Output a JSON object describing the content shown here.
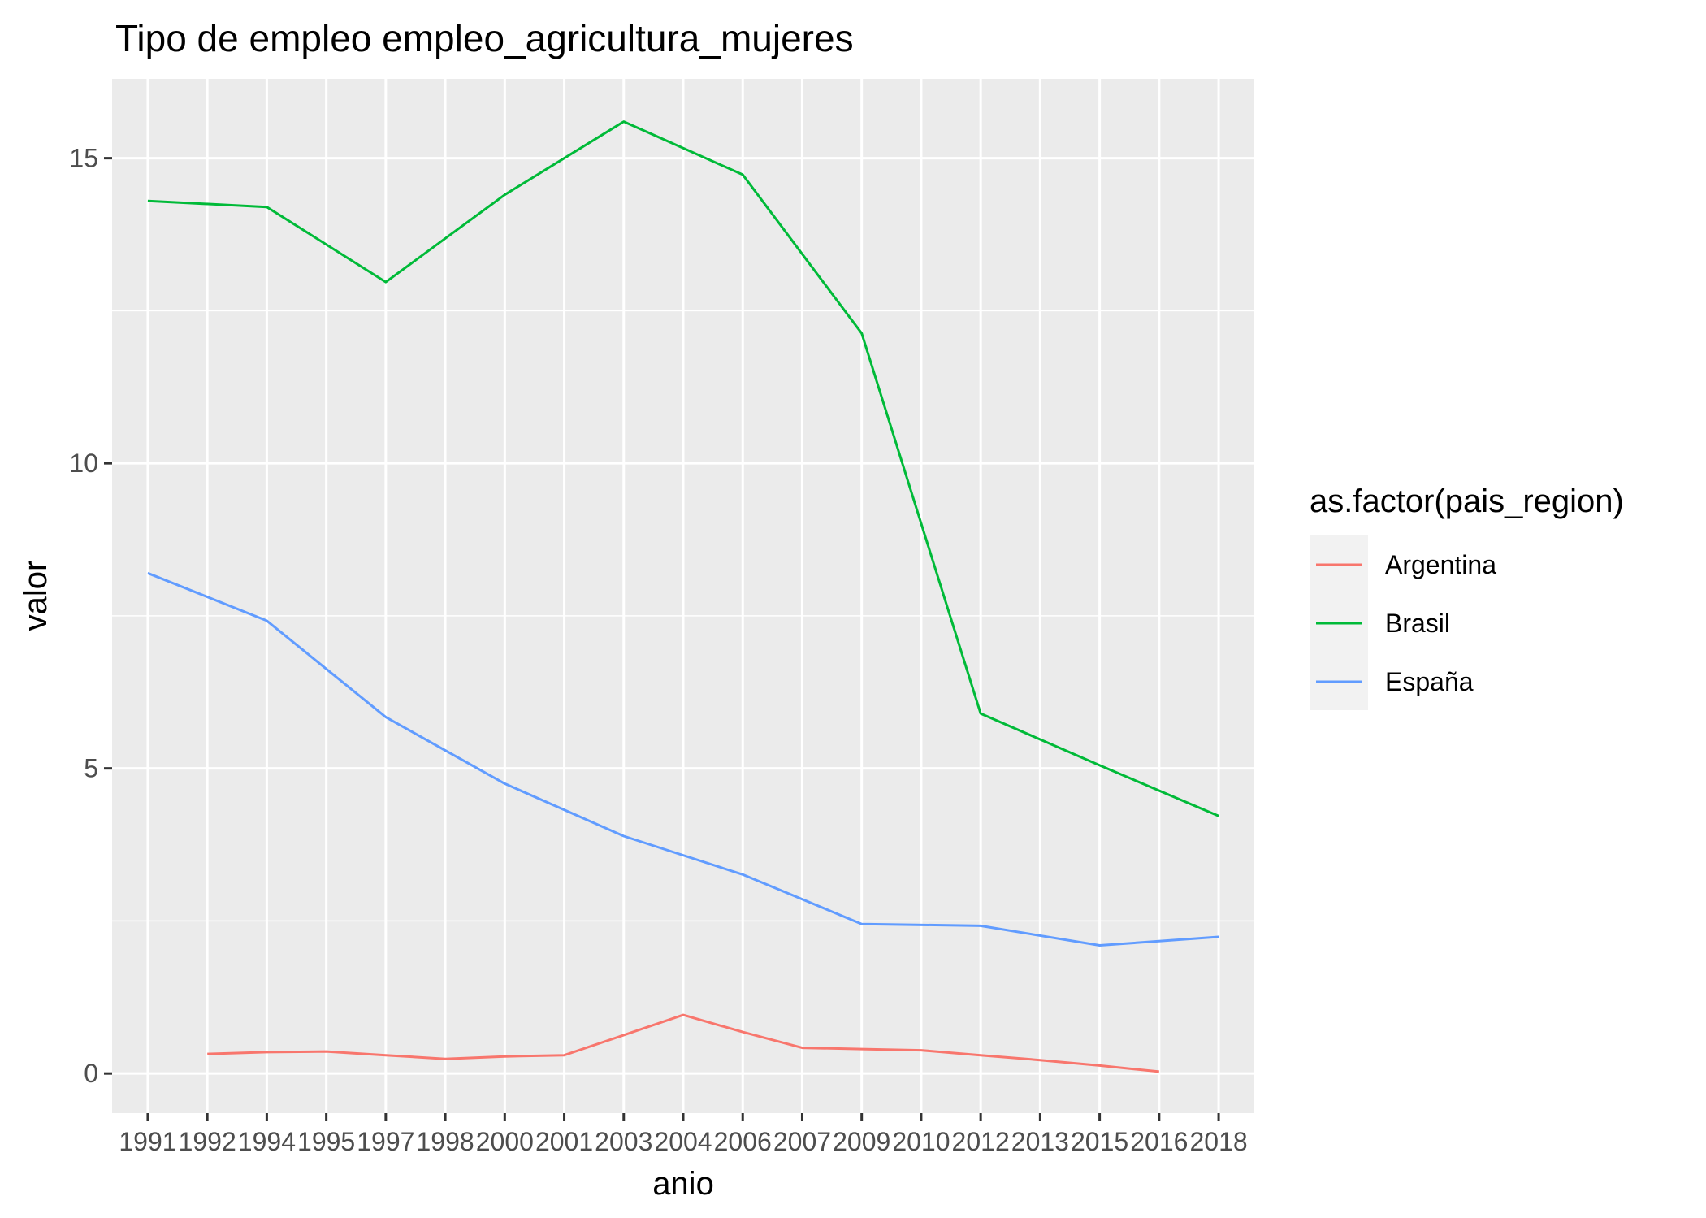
{
  "chart_data": {
    "type": "line",
    "title": "Tipo de empleo empleo_agricultura_mujeres",
    "xlabel": "anio",
    "ylabel": "valor",
    "categories": [
      "1991",
      "1992",
      "1994",
      "1995",
      "1997",
      "1998",
      "2000",
      "2001",
      "2003",
      "2004",
      "2006",
      "2007",
      "2009",
      "2010",
      "2012",
      "2013",
      "2015",
      "2016",
      "2018"
    ],
    "ylim": [
      -0.65,
      16.3
    ],
    "yticks": [
      0,
      5,
      10,
      15
    ],
    "grid": true,
    "legend": {
      "title": "as.factor(pais_region)",
      "position": "right"
    },
    "series": [
      {
        "name": "Argentina",
        "color": "#F8766D",
        "values": [
          null,
          0.32,
          0.35,
          0.36,
          0.3,
          0.24,
          0.28,
          0.3,
          0.63,
          0.96,
          0.68,
          0.42,
          0.4,
          0.38,
          0.3,
          0.22,
          0.13,
          0.03,
          null
        ]
      },
      {
        "name": "Brasil",
        "color": "#00BA38",
        "values": [
          14.3,
          null,
          14.2,
          null,
          12.97,
          null,
          14.4,
          null,
          15.6,
          null,
          14.73,
          null,
          12.13,
          null,
          5.9,
          null,
          5.05,
          null,
          4.22
        ]
      },
      {
        "name": "España",
        "color": "#619CFF",
        "values": [
          8.2,
          null,
          7.42,
          null,
          5.84,
          null,
          4.75,
          null,
          3.89,
          null,
          3.26,
          null,
          2.45,
          null,
          2.42,
          null,
          2.1,
          null,
          2.24
        ]
      }
    ]
  }
}
